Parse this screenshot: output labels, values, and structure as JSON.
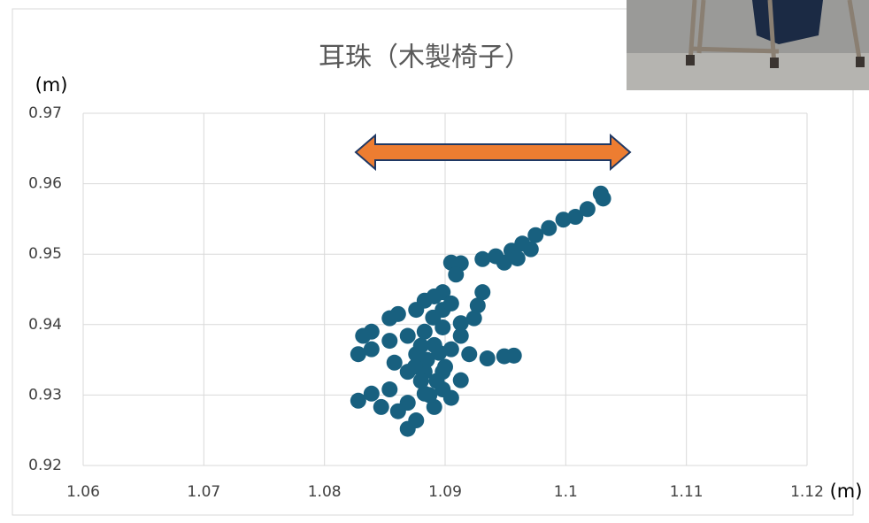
{
  "chart_data": {
    "type": "scatter",
    "title": "耳珠（木製椅子）",
    "x_label": "(m)",
    "y_label": "(m)",
    "color": "#18607f",
    "grid": true,
    "xlim": [
      1.06,
      1.12
    ],
    "xticks": [
      1.06,
      1.07,
      1.08,
      1.09,
      1.1,
      1.11,
      1.12
    ],
    "ylim": [
      0.92,
      0.97
    ],
    "yticks": [
      0.92,
      0.93,
      0.94,
      0.95,
      0.96,
      0.97
    ],
    "x": [
      1.1031,
      1.1029,
      1.1018,
      1.1008,
      1.0998,
      1.0986,
      1.0975,
      1.0964,
      1.0955,
      1.0949,
      1.096,
      1.0971,
      1.0942,
      1.0931,
      1.0913,
      1.0905,
      1.0909,
      1.0898,
      1.0891,
      1.0883,
      1.0876,
      1.0861,
      1.0854,
      1.0839,
      1.0832,
      1.0828,
      1.0839,
      1.0854,
      1.0869,
      1.0883,
      1.0898,
      1.0913,
      1.0924,
      1.0931,
      1.0927,
      1.0913,
      1.0905,
      1.092,
      1.0935,
      1.0949,
      1.0957,
      1.0913,
      1.0898,
      1.0883,
      1.0869,
      1.0854,
      1.0839,
      1.0828,
      1.0847,
      1.0861,
      1.0869,
      1.0876,
      1.0891,
      1.0905,
      1.0898,
      1.0883,
      1.0869,
      1.0858,
      1.0876,
      1.0891,
      1.0898,
      1.0885,
      1.0895,
      1.088,
      1.089,
      1.0905,
      1.0875,
      1.0893,
      1.09,
      1.0887,
      1.088
    ],
    "values": [
      0.9579,
      0.9586,
      0.9564,
      0.9553,
      0.9549,
      0.9537,
      0.9527,
      0.9515,
      0.9505,
      0.9488,
      0.9494,
      0.9507,
      0.9497,
      0.9493,
      0.9487,
      0.9488,
      0.9471,
      0.9446,
      0.944,
      0.9434,
      0.9421,
      0.9415,
      0.9409,
      0.939,
      0.9384,
      0.9358,
      0.9365,
      0.9377,
      0.9384,
      0.939,
      0.9396,
      0.9402,
      0.9409,
      0.9446,
      0.9427,
      0.9384,
      0.9365,
      0.9358,
      0.9352,
      0.9355,
      0.9356,
      0.9321,
      0.9308,
      0.9302,
      0.9289,
      0.9308,
      0.9302,
      0.9292,
      0.9283,
      0.9277,
      0.9252,
      0.9264,
      0.9283,
      0.9296,
      0.9333,
      0.9333,
      0.9333,
      0.9346,
      0.9358,
      0.9371,
      0.9421,
      0.935,
      0.936,
      0.932,
      0.941,
      0.943,
      0.934,
      0.932,
      0.934,
      0.93,
      0.937
    ]
  }
}
